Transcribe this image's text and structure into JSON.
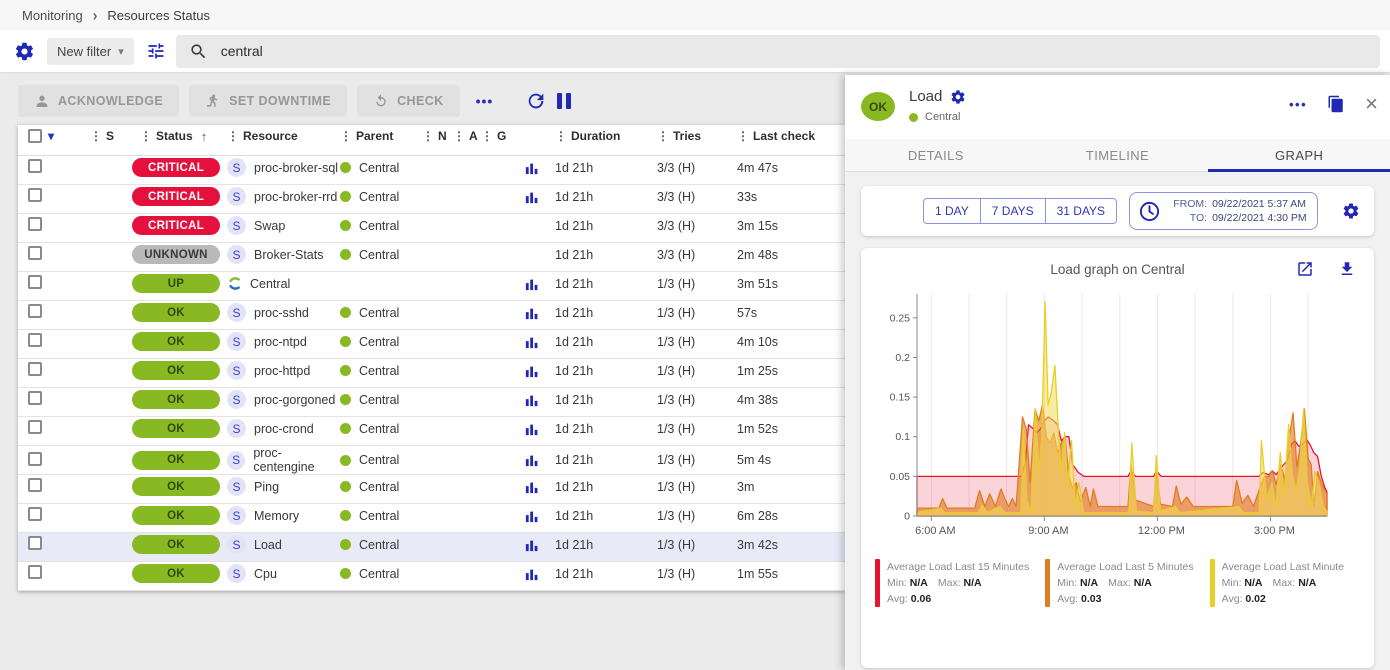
{
  "breadcrumb": {
    "items": [
      "Monitoring",
      "Resources Status"
    ],
    "separator": "›"
  },
  "filter_bar": {
    "new_filter_label": "New filter",
    "caret": "▾",
    "search_value": "central"
  },
  "toolbar": {
    "acknowledge": "ACKNOWLEDGE",
    "set_downtime": "SET DOWNTIME",
    "check": "CHECK",
    "more": "•••"
  },
  "table": {
    "columns": [
      "S",
      "Status",
      "Resource",
      "Parent",
      "N",
      "A",
      "G",
      "Duration",
      "Tries",
      "Last check"
    ],
    "drag_glyph": "⋮",
    "sort_glyph": "↑",
    "header_caret": "▾",
    "rows": [
      {
        "status": "CRITICAL",
        "icon": "service",
        "resource": "proc-broker-sql",
        "parent": "Central",
        "graph": true,
        "duration": "1d 21h",
        "tries": "3/3 (H)",
        "last_check": "4m 47s",
        "highlight": false
      },
      {
        "status": "CRITICAL",
        "icon": "service",
        "resource": "proc-broker-rrd",
        "parent": "Central",
        "graph": true,
        "duration": "1d 21h",
        "tries": "3/3 (H)",
        "last_check": "33s",
        "highlight": false
      },
      {
        "status": "CRITICAL",
        "icon": "service",
        "resource": "Swap",
        "parent": "Central",
        "graph": false,
        "duration": "1d 21h",
        "tries": "3/3 (H)",
        "last_check": "3m 15s",
        "highlight": false
      },
      {
        "status": "UNKNOWN",
        "icon": "service",
        "resource": "Broker-Stats",
        "parent": "Central",
        "graph": false,
        "duration": "1d 21h",
        "tries": "3/3 (H)",
        "last_check": "2m 48s",
        "highlight": false
      },
      {
        "status": "UP",
        "icon": "host",
        "resource": "Central",
        "parent": "",
        "graph": true,
        "duration": "1d 21h",
        "tries": "1/3 (H)",
        "last_check": "3m 51s",
        "highlight": false
      },
      {
        "status": "OK",
        "icon": "service",
        "resource": "proc-sshd",
        "parent": "Central",
        "graph": true,
        "duration": "1d 21h",
        "tries": "1/3 (H)",
        "last_check": "57s",
        "highlight": false
      },
      {
        "status": "OK",
        "icon": "service",
        "resource": "proc-ntpd",
        "parent": "Central",
        "graph": true,
        "duration": "1d 21h",
        "tries": "1/3 (H)",
        "last_check": "4m 10s",
        "highlight": false
      },
      {
        "status": "OK",
        "icon": "service",
        "resource": "proc-httpd",
        "parent": "Central",
        "graph": true,
        "duration": "1d 21h",
        "tries": "1/3 (H)",
        "last_check": "1m 25s",
        "highlight": false
      },
      {
        "status": "OK",
        "icon": "service",
        "resource": "proc-gorgoned",
        "parent": "Central",
        "graph": true,
        "duration": "1d 21h",
        "tries": "1/3 (H)",
        "last_check": "4m 38s",
        "highlight": false
      },
      {
        "status": "OK",
        "icon": "service",
        "resource": "proc-crond",
        "parent": "Central",
        "graph": true,
        "duration": "1d 21h",
        "tries": "1/3 (H)",
        "last_check": "1m 52s",
        "highlight": false
      },
      {
        "status": "OK",
        "icon": "service",
        "resource": "proc-centengine",
        "parent": "Central",
        "graph": true,
        "duration": "1d 21h",
        "tries": "1/3 (H)",
        "last_check": "5m 4s",
        "highlight": false
      },
      {
        "status": "OK",
        "icon": "service",
        "resource": "Ping",
        "parent": "Central",
        "graph": true,
        "duration": "1d 21h",
        "tries": "1/3 (H)",
        "last_check": "3m",
        "highlight": false
      },
      {
        "status": "OK",
        "icon": "service",
        "resource": "Memory",
        "parent": "Central",
        "graph": true,
        "duration": "1d 21h",
        "tries": "1/3 (H)",
        "last_check": "6m 28s",
        "highlight": false
      },
      {
        "status": "OK",
        "icon": "service",
        "resource": "Load",
        "parent": "Central",
        "graph": true,
        "duration": "1d 21h",
        "tries": "1/3 (H)",
        "last_check": "3m 42s",
        "highlight": true
      },
      {
        "status": "OK",
        "icon": "service",
        "resource": "Cpu",
        "parent": "Central",
        "graph": true,
        "duration": "1d 21h",
        "tries": "1/3 (H)",
        "last_check": "1m 55s",
        "highlight": false
      }
    ]
  },
  "colors": {
    "critical": "#e5103c",
    "unknown": "#b9b9b9",
    "ok": "#88b922",
    "accent": "#2630c0"
  },
  "panel": {
    "status": "OK",
    "title": "Load",
    "parent": "Central",
    "more_label": "•••",
    "close_label": "×",
    "tabs": [
      "DETAILS",
      "TIMELINE",
      "GRAPH"
    ],
    "active_tab": "GRAPH",
    "ranges": [
      "1 DAY",
      "7 DAYS",
      "31 DAYS"
    ],
    "from_label": "FROM:",
    "from_value": "09/22/2021 5:37 AM",
    "to_label": "TO:",
    "to_value": "09/22/2021 4:30 PM",
    "legend_labels": {
      "min": "Min:",
      "max": "Max:",
      "avg": "Avg:"
    }
  },
  "chart_data": {
    "type": "area",
    "title": "Load graph on Central",
    "x_range": {
      "start": 5.62,
      "end": 16.5
    },
    "x_ticks": [
      {
        "t": 6,
        "label": "6:00 AM"
      },
      {
        "t": 9,
        "label": "9:00 AM"
      },
      {
        "t": 12,
        "label": "12:00 PM"
      },
      {
        "t": 15,
        "label": "3:00 PM"
      }
    ],
    "y_range": [
      0,
      0.28
    ],
    "y_ticks": [
      0,
      0.05,
      0.1,
      0.15,
      0.2,
      0.25
    ],
    "grid_hours": [
      6,
      7,
      8,
      9,
      10,
      11,
      12,
      13,
      14,
      15,
      16
    ],
    "series": [
      {
        "name": "Average Load Last 15 Minutes",
        "color": "#e8132e",
        "fill": "rgba(232,19,46,0.18)",
        "min": "N/A",
        "max": "N/A",
        "avg": "0.06",
        "points": [
          [
            5.62,
            0.05
          ],
          [
            8.4,
            0.05
          ],
          [
            8.5,
            0.07
          ],
          [
            8.58,
            0.115
          ],
          [
            8.7,
            0.11
          ],
          [
            8.8,
            0.105
          ],
          [
            8.9,
            0.11
          ],
          [
            9.0,
            0.12
          ],
          [
            9.1,
            0.125
          ],
          [
            9.25,
            0.12
          ],
          [
            9.35,
            0.115
          ],
          [
            9.45,
            0.095
          ],
          [
            9.55,
            0.1
          ],
          [
            9.65,
            0.1
          ],
          [
            9.75,
            0.065
          ],
          [
            9.9,
            0.055
          ],
          [
            10.05,
            0.05
          ],
          [
            11.22,
            0.05
          ],
          [
            11.3,
            0.057
          ],
          [
            11.42,
            0.05
          ],
          [
            11.9,
            0.05
          ],
          [
            11.97,
            0.057
          ],
          [
            12.1,
            0.05
          ],
          [
            14.7,
            0.05
          ],
          [
            14.8,
            0.055
          ],
          [
            14.95,
            0.052
          ],
          [
            15.05,
            0.057
          ],
          [
            15.15,
            0.052
          ],
          [
            15.3,
            0.062
          ],
          [
            15.45,
            0.07
          ],
          [
            15.55,
            0.09
          ],
          [
            15.65,
            0.095
          ],
          [
            15.75,
            0.088
          ],
          [
            15.85,
            0.09
          ],
          [
            15.95,
            0.097
          ],
          [
            16.05,
            0.09
          ],
          [
            16.15,
            0.08
          ],
          [
            16.25,
            0.075
          ],
          [
            16.35,
            0.05
          ],
          [
            16.45,
            0.035
          ],
          [
            16.5,
            0.03
          ]
        ]
      },
      {
        "name": "Average Load Last 5 Minutes",
        "color": "#df7d20",
        "fill": "rgba(224,121,31,0.62)",
        "min": "N/A",
        "max": "N/A",
        "avg": "0.03",
        "points": [
          [
            5.62,
            0.01
          ],
          [
            6.2,
            0.01
          ],
          [
            6.3,
            0.022
          ],
          [
            6.42,
            0.01
          ],
          [
            7.15,
            0.01
          ],
          [
            7.28,
            0.032
          ],
          [
            7.42,
            0.012
          ],
          [
            7.55,
            0.028
          ],
          [
            7.7,
            0.012
          ],
          [
            7.85,
            0.034
          ],
          [
            7.95,
            0.022
          ],
          [
            8.05,
            0.012
          ],
          [
            8.15,
            0.022
          ],
          [
            8.25,
            0.012
          ],
          [
            8.42,
            0.125
          ],
          [
            8.52,
            0.11
          ],
          [
            8.62,
            0.042
          ],
          [
            8.75,
            0.135
          ],
          [
            8.85,
            0.12
          ],
          [
            8.95,
            0.14
          ],
          [
            9.05,
            0.1
          ],
          [
            9.15,
            0.092
          ],
          [
            9.25,
            0.105
          ],
          [
            9.35,
            0.08
          ],
          [
            9.45,
            0.092
          ],
          [
            9.55,
            0.1
          ],
          [
            9.65,
            0.05
          ],
          [
            9.75,
            0.035
          ],
          [
            9.85,
            0.042
          ],
          [
            9.95,
            0.018
          ],
          [
            10.1,
            0.036
          ],
          [
            10.22,
            0.012
          ],
          [
            10.3,
            0.034
          ],
          [
            10.42,
            0.012
          ],
          [
            11.22,
            0.012
          ],
          [
            11.3,
            0.065
          ],
          [
            11.42,
            0.02
          ],
          [
            11.9,
            0.012
          ],
          [
            11.97,
            0.057
          ],
          [
            12.08,
            0.015
          ],
          [
            12.4,
            0.012
          ],
          [
            12.5,
            0.038
          ],
          [
            12.62,
            0.015
          ],
          [
            12.78,
            0.024
          ],
          [
            12.95,
            0.012
          ],
          [
            14.0,
            0.012
          ],
          [
            14.1,
            0.045
          ],
          [
            14.25,
            0.016
          ],
          [
            14.4,
            0.026
          ],
          [
            14.55,
            0.012
          ],
          [
            14.75,
            0.04
          ],
          [
            14.85,
            0.05
          ],
          [
            14.95,
            0.05
          ],
          [
            15.05,
            0.057
          ],
          [
            15.15,
            0.04
          ],
          [
            15.28,
            0.065
          ],
          [
            15.38,
            0.045
          ],
          [
            15.5,
            0.1
          ],
          [
            15.6,
            0.13
          ],
          [
            15.7,
            0.062
          ],
          [
            15.8,
            0.09
          ],
          [
            15.9,
            0.135
          ],
          [
            16.0,
            0.072
          ],
          [
            16.08,
            0.065
          ],
          [
            16.15,
            0.012
          ],
          [
            16.25,
            0.056
          ],
          [
            16.35,
            0.042
          ],
          [
            16.45,
            0.032
          ],
          [
            16.5,
            0.028
          ]
        ]
      },
      {
        "name": "Average Load Last Minute",
        "color": "#e9ce25",
        "fill": "rgba(242,220,90,0.55)",
        "min": "N/A",
        "max": "N/A",
        "avg": "0.02",
        "points": [
          [
            5.62,
            0.004
          ],
          [
            6.25,
            0.01
          ],
          [
            6.35,
            0.004
          ],
          [
            7.25,
            0.004
          ],
          [
            7.35,
            0.014
          ],
          [
            7.48,
            0.004
          ],
          [
            7.82,
            0.012
          ],
          [
            7.95,
            0.004
          ],
          [
            8.38,
            0.004
          ],
          [
            8.44,
            0.11
          ],
          [
            8.54,
            0.02
          ],
          [
            8.64,
            0.004
          ],
          [
            8.76,
            0.135
          ],
          [
            8.86,
            0.055
          ],
          [
            8.93,
            0.1
          ],
          [
            9.02,
            0.27
          ],
          [
            9.1,
            0.14
          ],
          [
            9.18,
            0.155
          ],
          [
            9.28,
            0.19
          ],
          [
            9.36,
            0.12
          ],
          [
            9.44,
            0.055
          ],
          [
            9.54,
            0.105
          ],
          [
            9.62,
            0.04
          ],
          [
            9.72,
            0.095
          ],
          [
            9.82,
            0.012
          ],
          [
            9.92,
            0.042
          ],
          [
            10.04,
            0.004
          ],
          [
            11.24,
            0.004
          ],
          [
            11.32,
            0.092
          ],
          [
            11.44,
            0.006
          ],
          [
            11.9,
            0.004
          ],
          [
            11.97,
            0.076
          ],
          [
            12.08,
            0.006
          ],
          [
            12.48,
            0.012
          ],
          [
            12.6,
            0.004
          ],
          [
            14.16,
            0.012
          ],
          [
            14.28,
            0.004
          ],
          [
            14.7,
            0.004
          ],
          [
            14.76,
            0.095
          ],
          [
            14.9,
            0.022
          ],
          [
            15.04,
            0.042
          ],
          [
            15.14,
            0.012
          ],
          [
            15.26,
            0.08
          ],
          [
            15.36,
            0.022
          ],
          [
            15.48,
            0.115
          ],
          [
            15.58,
            0.052
          ],
          [
            15.68,
            0.032
          ],
          [
            15.78,
            0.062
          ],
          [
            15.88,
            0.135
          ],
          [
            15.98,
            0.042
          ],
          [
            16.08,
            0.012
          ],
          [
            16.18,
            0.056
          ],
          [
            16.28,
            0.042
          ],
          [
            16.4,
            0.012
          ],
          [
            16.5,
            0.006
          ]
        ]
      }
    ]
  }
}
